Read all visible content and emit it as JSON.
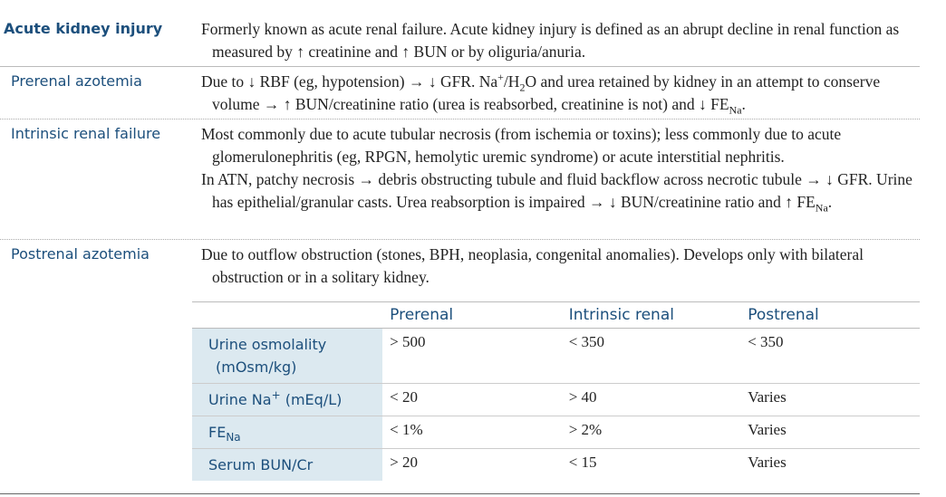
{
  "sections": [
    {
      "term": "Acute kidney injury",
      "paragraphs": [
        [
          "Formerly known as acute renal failure. Acute kidney injury is defined as an abrupt decline in renal function as measured by ↑ creatinine and ↑ BUN or by oliguria/anuria."
        ]
      ]
    },
    {
      "term": "Prerenal azotemia",
      "paragraphs": [
        [
          "Due to ↓ RBF (eg, hypotension) → ↓ GFR. Na",
          "+",
          "/H",
          "2",
          "O and urea retained by kidney in an attempt to conserve volume → ↑ BUN/creatinine ratio (urea is reabsorbed, creatinine is not) and ↓ FE",
          "Na",
          "."
        ]
      ]
    },
    {
      "term": "Intrinsic renal failure",
      "paragraphs": [
        [
          "Most commonly due to acute tubular necrosis (from ischemia or toxins); less commonly due to acute glomerulonephritis (eg, RPGN, hemolytic uremic syndrome) or acute interstitial nephritis."
        ],
        [
          "In ATN, patchy necrosis → debris obstructing tubule and fluid backflow across necrotic tubule → ↓ GFR. Urine has epithelial/granular casts. Urea reabsorption is impaired → ↓ BUN/creatinine ratio and ↑ FE",
          "Na",
          "."
        ]
      ]
    },
    {
      "term": "Postrenal azotemia",
      "paragraphs": [
        [
          "Due to outflow obstruction (stones, BPH, neoplasia, congenital anomalies). Develops only with bilateral obstruction or in a solitary kidney."
        ]
      ]
    }
  ],
  "table": {
    "header": [
      "Prerenal",
      "Intrinsic renal",
      "Postrenal"
    ],
    "rows": [
      {
        "label": [
          "Urine osmolality (mOsm/kg)"
        ],
        "cells": [
          "> 500",
          "< 350",
          "< 350"
        ]
      },
      {
        "label": [
          "Urine Na",
          "+",
          " (mEq/L)"
        ],
        "cells": [
          "< 20",
          "> 40",
          "Varies"
        ]
      },
      {
        "label": [
          "FE",
          "Na"
        ],
        "cells": [
          "< 1%",
          "> 2%",
          "Varies"
        ]
      },
      {
        "label": [
          "Serum BUN/Cr"
        ],
        "cells": [
          "> 20",
          "< 15",
          "Varies"
        ]
      }
    ]
  }
}
